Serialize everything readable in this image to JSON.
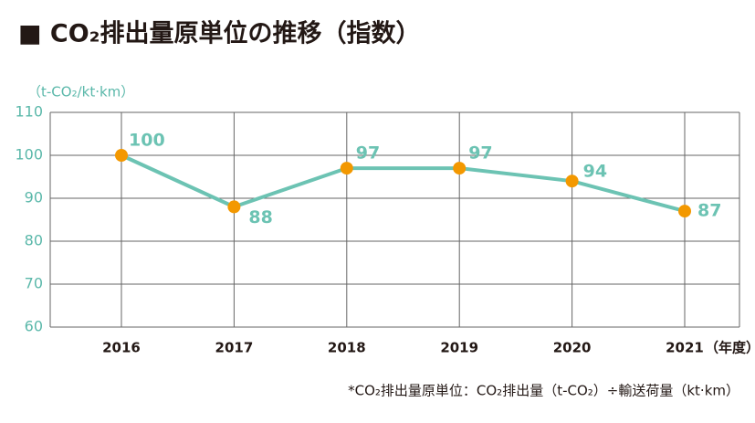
{
  "chart_data": {
    "type": "line",
    "title": "■ CO₂排出量原単位の推移（指数）",
    "y_axis_label": "（t-CO₂/kt·km）",
    "x_axis_unit": "（年度）",
    "footnote": "*CO₂排出量原単位：CO₂排出量（t-CO₂）÷輸送荷量（kt·km）",
    "categories": [
      "2016",
      "2017",
      "2018",
      "2019",
      "2020",
      "2021"
    ],
    "series": [
      {
        "name": "CO₂排出量原単位",
        "color": "#6cc3b3",
        "marker_color": "#f39800",
        "values": [
          100,
          88,
          97,
          97,
          94,
          87
        ]
      }
    ],
    "ylim": [
      60,
      110
    ],
    "yticks": [
      60,
      70,
      80,
      90,
      100,
      110
    ],
    "grid": true
  }
}
